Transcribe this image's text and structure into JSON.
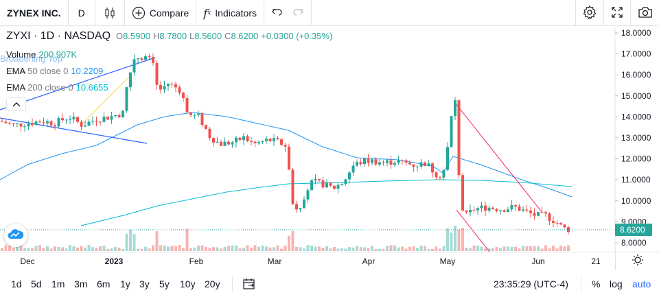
{
  "toolbar": {
    "symbol": "ZYNEX INC.",
    "interval": "D",
    "compare_label": "Compare",
    "indicators_label": "Indicators"
  },
  "legend": {
    "symbol": "ZYXI",
    "interval": "1D",
    "exchange": "NASDAQ",
    "open_label": "O",
    "open": "8.5900",
    "high_label": "H",
    "high": "8.7800",
    "low_label": "L",
    "low": "8.5600",
    "close_label": "C",
    "close": "8.6200",
    "change": "+0.0300 (+0.35%)",
    "volume_label": "Volume",
    "volume_value": "200.907K",
    "pattern_label": "Broadening Top",
    "ema50_label": "EMA",
    "ema50_params": "50 close 0",
    "ema50_value": "10.2209",
    "ema200_label": "EMA",
    "ema200_params": "200 close 0",
    "ema200_value": "10.6655"
  },
  "price_axis": {
    "ticks": [
      "18.0000",
      "17.0000",
      "16.0000",
      "15.0000",
      "14.0000",
      "13.0000",
      "12.0000",
      "11.0000",
      "10.0000",
      "9.0000",
      "8.0000"
    ],
    "last_price_label": "8.6200"
  },
  "time_axis": {
    "labels": [
      "Dec",
      "2023",
      "Feb",
      "Mar",
      "Apr",
      "May",
      "Jun",
      "21"
    ]
  },
  "bottom": {
    "ranges": [
      "1d",
      "5d",
      "1m",
      "3m",
      "6m",
      "1y",
      "3y",
      "5y",
      "10y",
      "20y"
    ],
    "time": "23:35:29 (UTC-4)",
    "percent_label": "%",
    "log_label": "log",
    "auto_label": "auto"
  },
  "colors": {
    "up": "#26a69a",
    "down": "#ef5350",
    "ema50": "#2196f3",
    "ema200": "#00bcd4",
    "pattern": "#2962ff",
    "accent": "#2962ff"
  },
  "chart_data": {
    "type": "candlestick",
    "price_range": [
      7.6,
      18.4
    ],
    "ema50_current": 10.2209,
    "ema200_current": 10.6655,
    "last_close": 8.62
  }
}
